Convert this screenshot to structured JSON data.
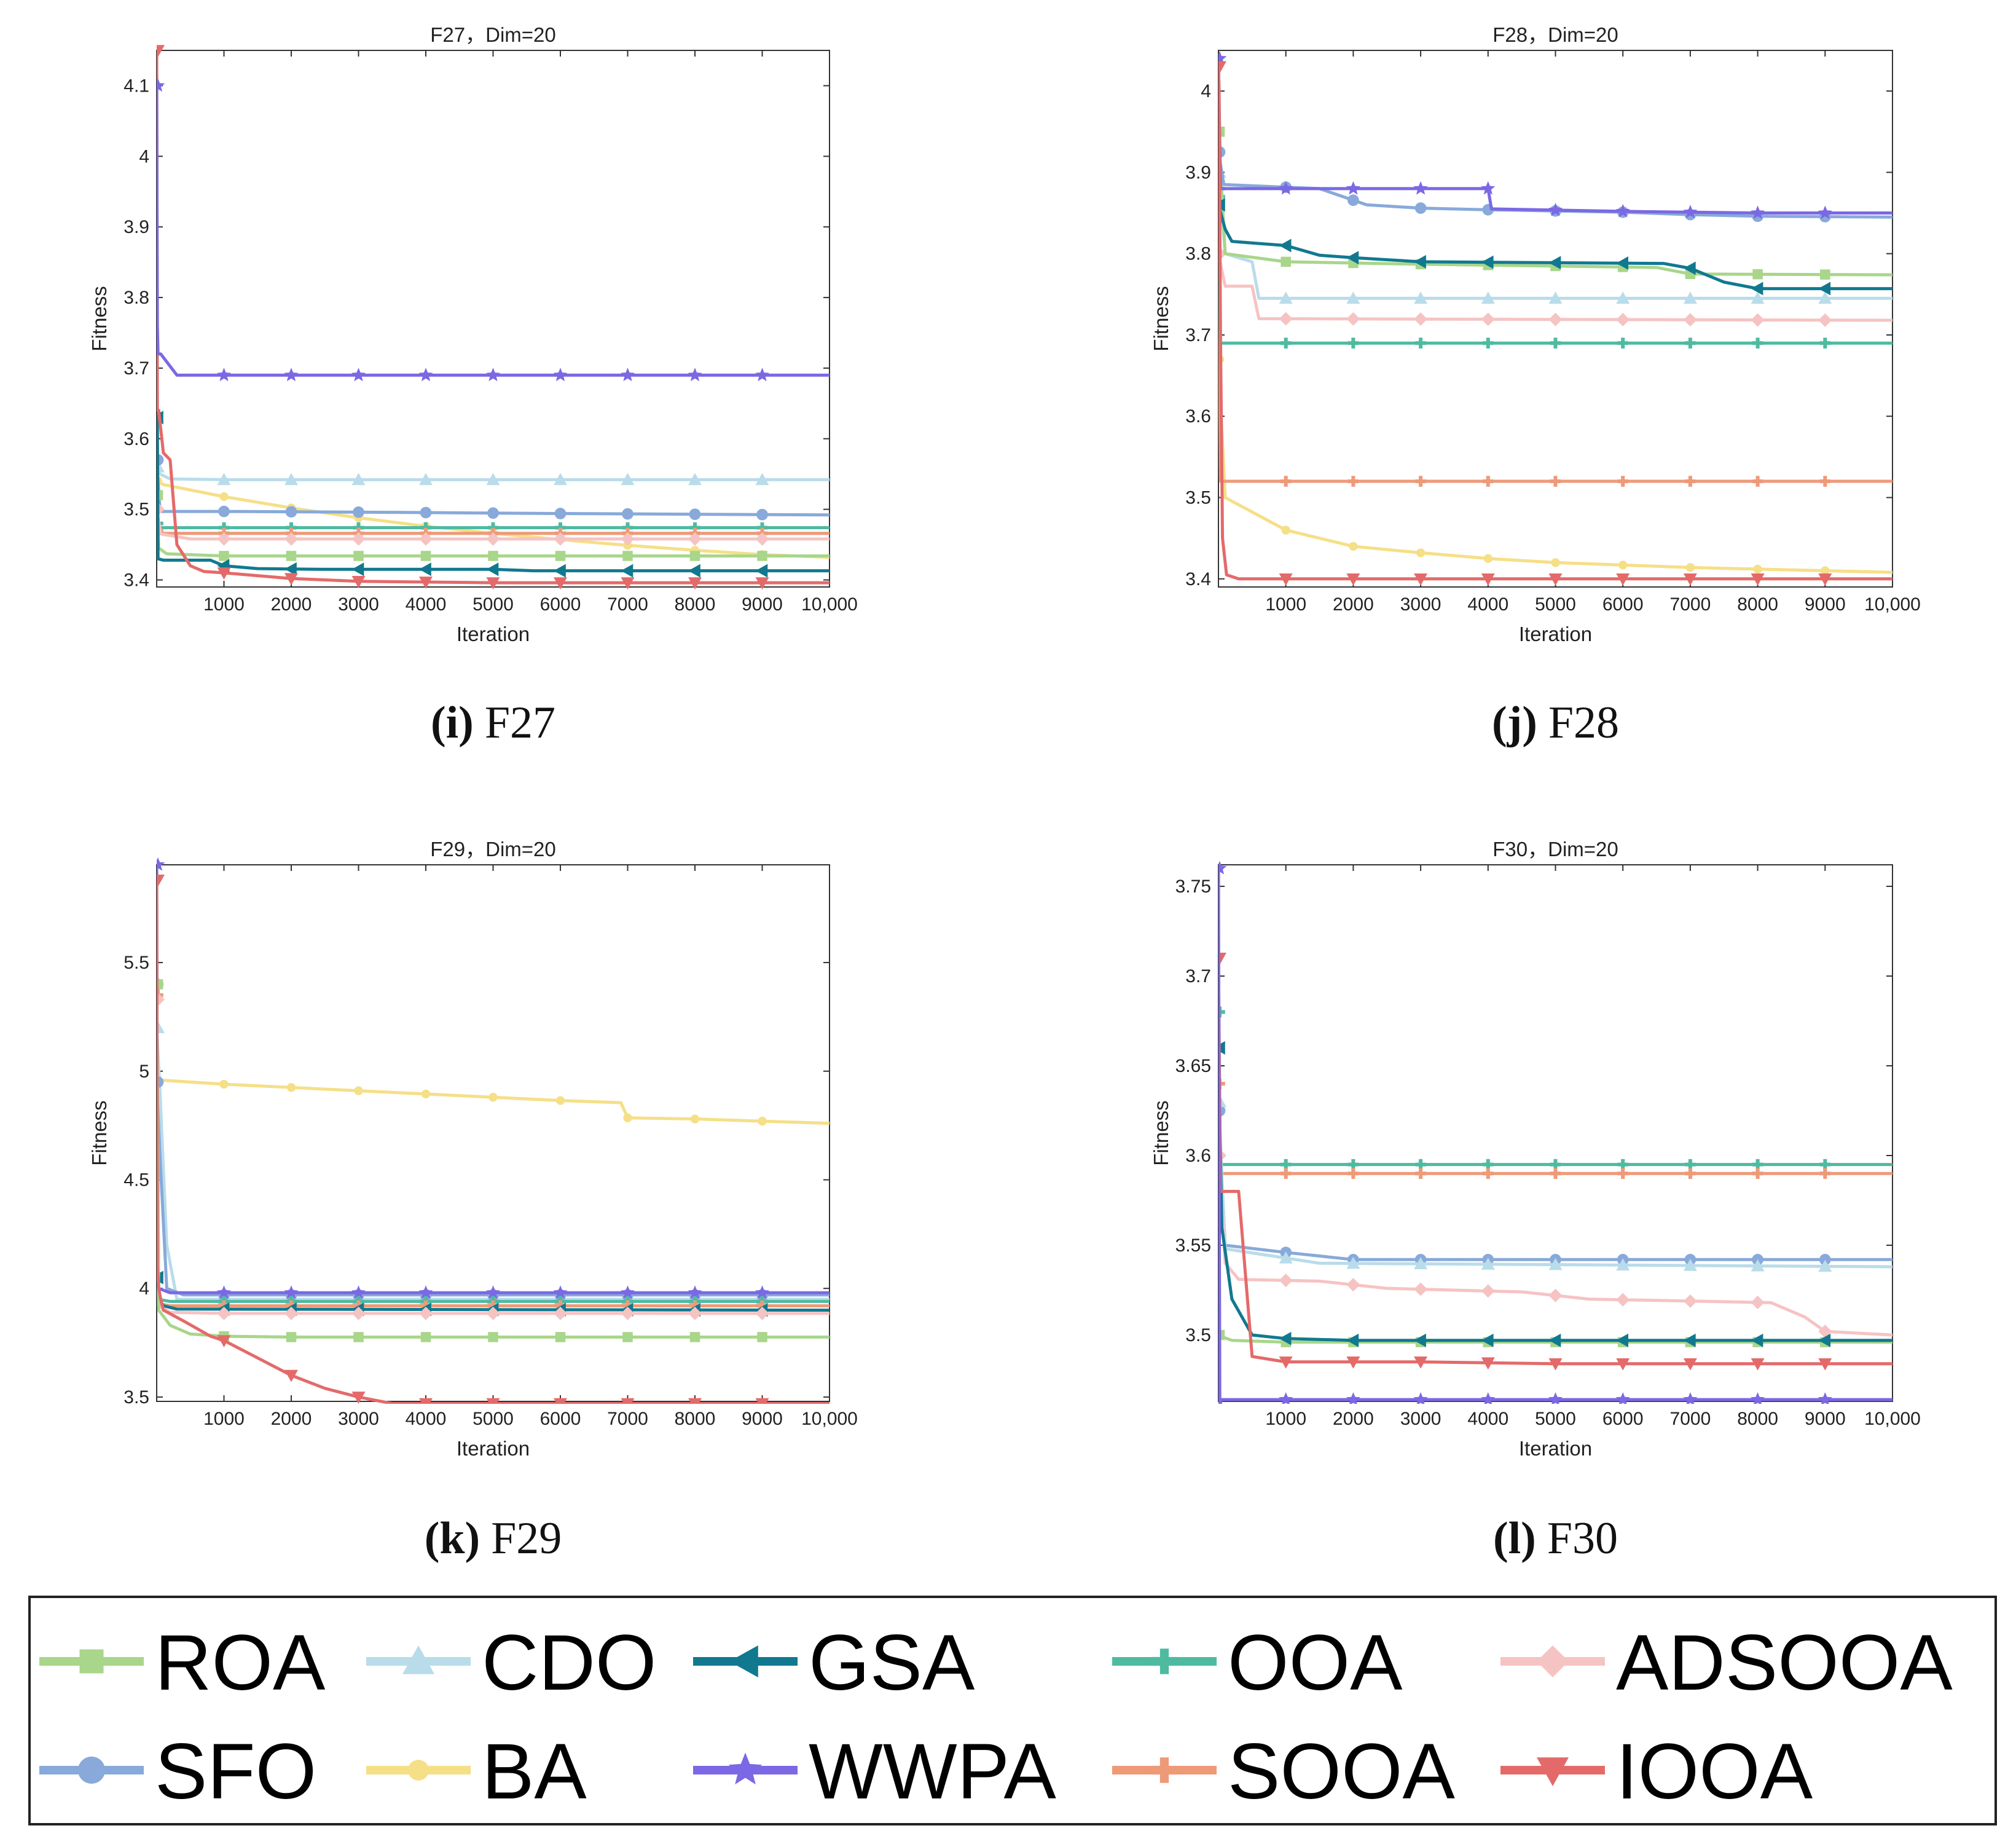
{
  "series_meta": [
    {
      "key": "ROA",
      "color": "#a8d68a",
      "marker": "square"
    },
    {
      "key": "CDO",
      "color": "#b9dcea",
      "marker": "triangle-up"
    },
    {
      "key": "GSA",
      "color": "#11798f",
      "marker": "triangle-left"
    },
    {
      "key": "OOA",
      "color": "#4ebba1",
      "marker": "plus"
    },
    {
      "key": "ADSOOA",
      "color": "#f6c3c3",
      "marker": "diamond"
    },
    {
      "key": "SFO",
      "color": "#88a9da",
      "marker": "circle"
    },
    {
      "key": "BA",
      "color": "#f5df87",
      "marker": "circle-small"
    },
    {
      "key": "WWPA",
      "color": "#7b68e4",
      "marker": "star"
    },
    {
      "key": "SOOA",
      "color": "#ee9a78",
      "marker": "plus"
    },
    {
      "key": "IOOA",
      "color": "#e46a6a",
      "marker": "triangle-down"
    }
  ],
  "legend": {
    "rows": [
      [
        "ROA",
        "CDO",
        "GSA",
        "OOA",
        "ADSOOA"
      ],
      [
        "SFO",
        "BA",
        "WWPA",
        "SOOA",
        "IOOA"
      ]
    ]
  },
  "chart_data": [
    {
      "type": "line",
      "title": "F27，Dim=20",
      "caption_letter": "(i)",
      "caption_name": "F27",
      "xlabel": "Iteration",
      "ylabel": "Fitness",
      "xlim": [
        0,
        10000
      ],
      "ylim": [
        3.39,
        4.15
      ],
      "x_ticks": [
        1000,
        2000,
        3000,
        4000,
        5000,
        6000,
        7000,
        8000,
        9000,
        10000
      ],
      "x_tick_labels": [
        "1000",
        "2000",
        "3000",
        "4000",
        "5000",
        "6000",
        "7000",
        "8000",
        "9000",
        "10,000"
      ],
      "y_ticks": [
        3.4,
        3.5,
        3.6,
        3.7,
        3.8,
        3.9,
        4.0,
        4.1
      ],
      "y_tick_labels": [
        "3.4",
        "3.5",
        "3.6",
        "3.7",
        "3.8",
        "3.9",
        "4",
        "4.1"
      ],
      "series": [
        {
          "name": "BA",
          "x": [
            0,
            100,
            1000,
            2000,
            3000,
            4000,
            5000,
            6000,
            7000,
            8000,
            9000,
            10000
          ],
          "y": [
            3.54,
            3.535,
            3.518,
            3.502,
            3.488,
            3.476,
            3.466,
            3.457,
            3.449,
            3.442,
            3.436,
            3.432
          ]
        },
        {
          "name": "CDO",
          "x": [
            0,
            50,
            200,
            1000,
            10000
          ],
          "y": [
            3.56,
            3.55,
            3.543,
            3.542,
            3.542
          ]
        },
        {
          "name": "SFO",
          "x": [
            0,
            50,
            1000,
            3000,
            6000,
            10000
          ],
          "y": [
            3.57,
            3.497,
            3.497,
            3.496,
            3.494,
            3.492
          ]
        },
        {
          "name": "OOA",
          "x": [
            0,
            50,
            10000
          ],
          "y": [
            3.48,
            3.474,
            3.474
          ]
        },
        {
          "name": "SOOA",
          "x": [
            0,
            50,
            10000
          ],
          "y": [
            3.47,
            3.466,
            3.466
          ]
        },
        {
          "name": "ADSOOA",
          "x": [
            0,
            60,
            500,
            10000
          ],
          "y": [
            3.5,
            3.465,
            3.458,
            3.458
          ]
        },
        {
          "name": "ROA",
          "x": [
            0,
            30,
            150,
            1000,
            10000
          ],
          "y": [
            3.52,
            3.445,
            3.437,
            3.434,
            3.434
          ]
        },
        {
          "name": "GSA",
          "x": [
            0,
            10,
            20,
            100,
            800,
            1000,
            1500,
            2500,
            5000,
            5600,
            10000
          ],
          "y": [
            3.63,
            3.63,
            3.43,
            3.428,
            3.428,
            3.42,
            3.416,
            3.415,
            3.415,
            3.413,
            3.413
          ]
        },
        {
          "name": "IOOA",
          "x": [
            0,
            10,
            30,
            100,
            200,
            300,
            500,
            700,
            1000,
            2000,
            3000,
            5000,
            10000
          ],
          "y": [
            4.15,
            3.64,
            3.64,
            3.58,
            3.57,
            3.45,
            3.42,
            3.412,
            3.41,
            3.402,
            3.398,
            3.396,
            3.396
          ]
        },
        {
          "name": "WWPA",
          "x": [
            0,
            10,
            20,
            60,
            300,
            10000
          ],
          "y": [
            4.1,
            3.76,
            3.72,
            3.72,
            3.69,
            3.69
          ]
        }
      ]
    },
    {
      "type": "line",
      "title": "F28，Dim=20",
      "caption_letter": "(j)",
      "caption_name": "F28",
      "xlabel": "Iteration",
      "ylabel": "Fitness",
      "xlim": [
        0,
        10000
      ],
      "ylim": [
        3.39,
        4.05
      ],
      "x_ticks": [
        1000,
        2000,
        3000,
        4000,
        5000,
        6000,
        7000,
        8000,
        9000,
        10000
      ],
      "x_tick_labels": [
        "1000",
        "2000",
        "3000",
        "4000",
        "5000",
        "6000",
        "7000",
        "8000",
        "9000",
        "10,000"
      ],
      "y_ticks": [
        3.4,
        3.5,
        3.6,
        3.7,
        3.8,
        3.9,
        4.0
      ],
      "y_tick_labels": [
        "3.4",
        "3.5",
        "3.6",
        "3.7",
        "3.8",
        "3.9",
        "4"
      ],
      "series": [
        {
          "name": "BA",
          "x": [
            0,
            100,
            1000,
            2000,
            3000,
            4000,
            5000,
            6000,
            7000,
            8000,
            9000,
            10000
          ],
          "y": [
            3.67,
            3.5,
            3.46,
            3.44,
            3.432,
            3.425,
            3.42,
            3.417,
            3.414,
            3.412,
            3.41,
            3.408
          ]
        },
        {
          "name": "SOOA",
          "x": [
            0,
            30,
            100,
            10000
          ],
          "y": [
            3.88,
            3.52,
            3.52,
            3.52
          ]
        },
        {
          "name": "OOA",
          "x": [
            0,
            30,
            100,
            10000
          ],
          "y": [
            3.87,
            3.69,
            3.69,
            3.69
          ]
        },
        {
          "name": "ADSOOA",
          "x": [
            0,
            100,
            500,
            600,
            10000
          ],
          "y": [
            3.8,
            3.76,
            3.76,
            3.72,
            3.718
          ]
        },
        {
          "name": "CDO",
          "x": [
            0,
            100,
            500,
            600,
            10000
          ],
          "y": [
            3.9,
            3.8,
            3.79,
            3.745,
            3.745
          ]
        },
        {
          "name": "ROA",
          "x": [
            0,
            100,
            1000,
            3000,
            6500,
            7000,
            10000
          ],
          "y": [
            3.95,
            3.8,
            3.79,
            3.787,
            3.783,
            3.775,
            3.774
          ]
        },
        {
          "name": "GSA",
          "x": [
            0,
            100,
            200,
            1000,
            1500,
            2000,
            3000,
            6600,
            7000,
            7500,
            8000,
            10000
          ],
          "y": [
            3.86,
            3.83,
            3.815,
            3.81,
            3.798,
            3.795,
            3.79,
            3.788,
            3.782,
            3.765,
            3.757,
            3.757
          ]
        },
        {
          "name": "SFO",
          "x": [
            0,
            80,
            1500,
            2200,
            3000,
            4000,
            6000,
            7000,
            8000,
            10000
          ],
          "y": [
            3.925,
            3.885,
            3.88,
            3.86,
            3.856,
            3.854,
            3.851,
            3.848,
            3.846,
            3.845
          ]
        },
        {
          "name": "WWPA",
          "x": [
            0,
            30,
            100,
            4000,
            4050,
            6000,
            8000,
            10000
          ],
          "y": [
            4.04,
            3.88,
            3.88,
            3.88,
            3.855,
            3.852,
            3.85,
            3.85
          ]
        },
        {
          "name": "IOOA",
          "x": [
            0,
            10,
            30,
            60,
            120,
            300,
            10000
          ],
          "y": [
            4.03,
            4.0,
            3.7,
            3.45,
            3.405,
            3.4,
            3.4
          ]
        }
      ]
    },
    {
      "type": "line",
      "title": "F29，Dim=20",
      "caption_letter": "(k)",
      "caption_name": "F29",
      "xlabel": "Iteration",
      "ylabel": "Fitness",
      "xlim": [
        0,
        10000
      ],
      "ylim": [
        3.48,
        5.95
      ],
      "x_ticks": [
        1000,
        2000,
        3000,
        4000,
        5000,
        6000,
        7000,
        8000,
        9000,
        10000
      ],
      "x_tick_labels": [
        "1000",
        "2000",
        "3000",
        "4000",
        "5000",
        "6000",
        "7000",
        "8000",
        "9000",
        "10,000"
      ],
      "y_ticks": [
        3.5,
        4.0,
        4.5,
        5.0,
        5.5
      ],
      "y_tick_labels": [
        "3.5",
        "4",
        "4.5",
        "5",
        "5.5"
      ],
      "series": [
        {
          "name": "BA",
          "x": [
            0,
            1000,
            2000,
            3000,
            4000,
            5000,
            6000,
            6900,
            7000,
            8000,
            9000,
            10000
          ],
          "y": [
            4.96,
            4.94,
            4.925,
            4.91,
            4.895,
            4.88,
            4.865,
            4.855,
            4.785,
            4.78,
            4.77,
            4.76
          ]
        },
        {
          "name": "CDO",
          "x": [
            0,
            50,
            150,
            300,
            10000
          ],
          "y": [
            5.2,
            4.9,
            4.2,
            3.95,
            3.95
          ]
        },
        {
          "name": "SFO",
          "x": [
            0,
            50,
            150,
            400,
            10000
          ],
          "y": [
            4.95,
            4.6,
            4.0,
            3.97,
            3.97
          ]
        },
        {
          "name": "WWPA",
          "x": [
            0,
            10,
            30,
            200,
            10000
          ],
          "y": [
            5.95,
            4.05,
            4.0,
            3.98,
            3.98
          ]
        },
        {
          "name": "OOA",
          "x": [
            0,
            30,
            200,
            10000
          ],
          "y": [
            5.4,
            3.95,
            3.94,
            3.94
          ]
        },
        {
          "name": "SOOA",
          "x": [
            0,
            30,
            200,
            10000
          ],
          "y": [
            5.35,
            3.93,
            3.92,
            3.92
          ]
        },
        {
          "name": "GSA",
          "x": [
            0,
            30,
            100,
            300,
            10000
          ],
          "y": [
            4.05,
            3.95,
            3.92,
            3.905,
            3.9
          ]
        },
        {
          "name": "ADSOOA",
          "x": [
            0,
            30,
            200,
            1000,
            10000
          ],
          "y": [
            5.33,
            3.92,
            3.89,
            3.885,
            3.885
          ]
        },
        {
          "name": "ROA",
          "x": [
            0,
            30,
            200,
            500,
            1000,
            2000,
            10000
          ],
          "y": [
            5.4,
            3.9,
            3.83,
            3.79,
            3.78,
            3.776,
            3.776
          ]
        },
        {
          "name": "IOOA",
          "x": [
            0,
            10,
            30,
            60,
            100,
            400,
            800,
            1000,
            1500,
            2000,
            2500,
            3000,
            3500,
            10000
          ],
          "y": [
            5.88,
            4.1,
            4.0,
            3.95,
            3.9,
            3.85,
            3.78,
            3.76,
            3.68,
            3.6,
            3.54,
            3.5,
            3.47,
            3.47
          ]
        }
      ]
    },
    {
      "type": "line",
      "title": "F30，Dim=20",
      "caption_letter": "(l)",
      "caption_name": "F30",
      "xlabel": "Iteration",
      "ylabel": "Fitness",
      "xlim": [
        0,
        10000
      ],
      "ylim": [
        3.463,
        3.762
      ],
      "x_ticks": [
        1000,
        2000,
        3000,
        4000,
        5000,
        6000,
        7000,
        8000,
        9000,
        10000
      ],
      "x_tick_labels": [
        "1000",
        "2000",
        "3000",
        "4000",
        "5000",
        "6000",
        "7000",
        "8000",
        "9000",
        "10,000"
      ],
      "y_ticks": [
        3.5,
        3.55,
        3.6,
        3.65,
        3.7,
        3.75
      ],
      "y_tick_labels": [
        "3.5",
        "3.55",
        "3.6",
        "3.65",
        "3.7",
        "3.75"
      ],
      "series": [
        {
          "name": "OOA",
          "x": [
            0,
            20,
            10000
          ],
          "y": [
            3.68,
            3.595,
            3.595
          ]
        },
        {
          "name": "SOOA",
          "x": [
            0,
            20,
            10000
          ],
          "y": [
            3.64,
            3.59,
            3.59
          ]
        },
        {
          "name": "SFO",
          "x": [
            0,
            100,
            1000,
            2000,
            10000
          ],
          "y": [
            3.625,
            3.55,
            3.546,
            3.542,
            3.542
          ]
        },
        {
          "name": "CDO",
          "x": [
            0,
            100,
            1500,
            10000
          ],
          "y": [
            3.63,
            3.548,
            3.54,
            3.538
          ]
        },
        {
          "name": "ADSOOA",
          "x": [
            0,
            100,
            300,
            1500,
            2500,
            4500,
            5500,
            8200,
            8700,
            9000,
            10000
          ],
          "y": [
            3.6,
            3.54,
            3.531,
            3.53,
            3.526,
            3.524,
            3.52,
            3.518,
            3.51,
            3.502,
            3.5
          ]
        },
        {
          "name": "ROA",
          "x": [
            0,
            50,
            200,
            1000,
            10000
          ],
          "y": [
            3.5,
            3.499,
            3.497,
            3.496,
            3.496
          ]
        },
        {
          "name": "GSA",
          "x": [
            0,
            50,
            200,
            500,
            1000,
            2000,
            10000
          ],
          "y": [
            3.66,
            3.56,
            3.52,
            3.5,
            3.498,
            3.497,
            3.497
          ]
        },
        {
          "name": "IOOA",
          "x": [
            0,
            30,
            80,
            300,
            500,
            1000,
            3000,
            5000,
            10000
          ],
          "y": [
            3.71,
            3.58,
            3.58,
            3.58,
            3.488,
            3.485,
            3.485,
            3.484,
            3.484
          ]
        },
        {
          "name": "WWPA",
          "x": [
            0,
            20,
            40,
            10000
          ],
          "y": [
            3.76,
            3.46,
            3.464,
            3.464
          ]
        }
      ]
    }
  ]
}
